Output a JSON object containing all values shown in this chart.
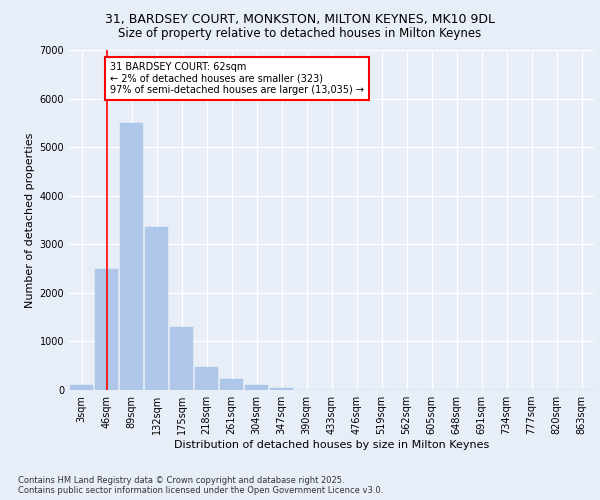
{
  "title_line1": "31, BARDSEY COURT, MONKSTON, MILTON KEYNES, MK10 9DL",
  "title_line2": "Size of property relative to detached houses in Milton Keynes",
  "xlabel": "Distribution of detached houses by size in Milton Keynes",
  "ylabel": "Number of detached properties",
  "bar_labels": [
    "3sqm",
    "46sqm",
    "89sqm",
    "132sqm",
    "175sqm",
    "218sqm",
    "261sqm",
    "304sqm",
    "347sqm",
    "390sqm",
    "433sqm",
    "476sqm",
    "519sqm",
    "562sqm",
    "605sqm",
    "648sqm",
    "691sqm",
    "734sqm",
    "777sqm",
    "820sqm",
    "863sqm"
  ],
  "bar_values": [
    100,
    2500,
    5500,
    3350,
    1300,
    480,
    220,
    100,
    50,
    0,
    0,
    0,
    0,
    0,
    0,
    0,
    0,
    0,
    0,
    0,
    0
  ],
  "bar_color": "#aec6e8",
  "bar_edgecolor": "#aec6e8",
  "vline_x": 1.0,
  "vline_color": "red",
  "annotation_title": "31 BARDSEY COURT: 62sqm",
  "annotation_line1": "← 2% of detached houses are smaller (323)",
  "annotation_line2": "97% of semi-detached houses are larger (13,035) →",
  "annotation_box_color": "red",
  "ylim": [
    0,
    7000
  ],
  "yticks": [
    0,
    1000,
    2000,
    3000,
    4000,
    5000,
    6000,
    7000
  ],
  "bg_color": "#e8eef8",
  "plot_bg_color": "#e8eef8",
  "footer_line1": "Contains HM Land Registry data © Crown copyright and database right 2025.",
  "footer_line2": "Contains public sector information licensed under the Open Government Licence v3.0.",
  "grid_color": "#ffffff",
  "title_fontsize": 9,
  "subtitle_fontsize": 8.5,
  "axis_label_fontsize": 8,
  "tick_fontsize": 7,
  "footer_fontsize": 6,
  "annot_fontsize": 7
}
